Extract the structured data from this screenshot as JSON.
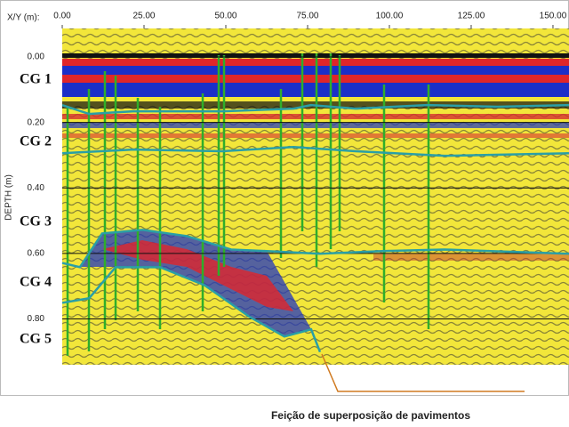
{
  "chart_data": {
    "type": "line",
    "x_label": "X/Y (m):",
    "y_label": "DEPTH (m)",
    "xlim": [
      0,
      154.9
    ],
    "ylim": [
      -0.087,
      0.94
    ],
    "y_inverted": true,
    "grid": true,
    "xticks": [
      {
        "value": 0,
        "label": "0.00"
      },
      {
        "value": 25,
        "label": "25.00"
      },
      {
        "value": 50,
        "label": "50.00"
      },
      {
        "value": 75,
        "label": "75.00"
      },
      {
        "value": 100,
        "label": "100.00"
      },
      {
        "value": 125,
        "label": "125.00"
      },
      {
        "value": 150,
        "label": "150.00"
      }
    ],
    "yticks": [
      {
        "value": 0,
        "label": "0.00"
      },
      {
        "value": 0.2,
        "label": "0.20"
      },
      {
        "value": 0.4,
        "label": "0.40"
      },
      {
        "value": 0.6,
        "label": "0.60"
      },
      {
        "value": 0.8,
        "label": "0.80"
      }
    ],
    "series": [
      {
        "color": "#2a9fa6",
        "x": [
          0,
          8.2,
          21.7,
          48.9,
          70.7,
          76,
          89.7,
          111.4,
          133,
          154.9
        ],
        "values": [
          0.147,
          0.174,
          0.166,
          0.166,
          0.158,
          0.147,
          0.158,
          0.147,
          0.152,
          0.147
        ]
      },
      {
        "color": "#2a9fa6",
        "x": [
          0,
          21.7,
          48.9,
          70.7,
          89.7,
          116.8,
          154.9
        ],
        "values": [
          0.294,
          0.283,
          0.288,
          0.275,
          0.288,
          0.302,
          0.294
        ]
      },
      {
        "color": "#2a9fa6",
        "x": [
          0,
          5.4,
          12.2,
          24.5,
          38,
          51.6,
          62.5,
          78.8,
          97.8,
          116.8,
          154.9
        ],
        "values": [
          0.629,
          0.642,
          0.539,
          0.528,
          0.547,
          0.588,
          0.593,
          0.601,
          0.593,
          0.588,
          0.601
        ]
      },
      {
        "color": "#2a9fa6",
        "x": [
          0,
          8.2,
          16.3,
          29.9,
          43.5,
          57,
          67.9,
          76.1,
          78.8
        ],
        "values": [
          0.751,
          0.737,
          0.642,
          0.642,
          0.697,
          0.792,
          0.854,
          0.832,
          0.901
        ]
      }
    ],
    "layer_labels": [
      "CG 1",
      "CG 2",
      "CG 3",
      "CG 4",
      "CG 5"
    ],
    "annotation": "Feição de superposição de pavimentos"
  }
}
